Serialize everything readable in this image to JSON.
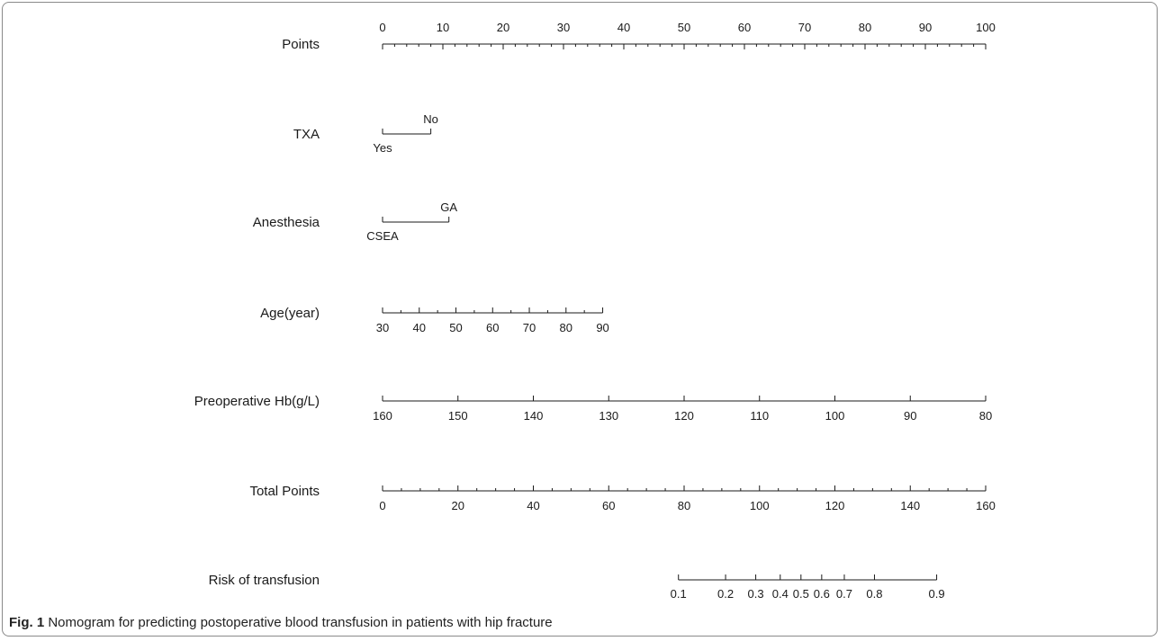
{
  "chart_data": {
    "type": "nomogram",
    "title": "",
    "scales": [
      {
        "label": "Points",
        "kind": "continuous",
        "points_range": [
          0,
          100
        ],
        "ticks": [
          0,
          10,
          20,
          30,
          40,
          50,
          60,
          70,
          80,
          90,
          100
        ],
        "label_position": "above"
      },
      {
        "label": "TXA",
        "kind": "categorical",
        "levels": [
          {
            "name": "Yes",
            "points": 0
          },
          {
            "name": "No",
            "points": 8
          }
        ]
      },
      {
        "label": "Anesthesia",
        "kind": "categorical",
        "levels": [
          {
            "name": "CSEA",
            "points": 0
          },
          {
            "name": "GA",
            "points": 11
          }
        ]
      },
      {
        "label": "Age(year)",
        "kind": "continuous",
        "value_range": [
          30,
          90
        ],
        "points_range": [
          0,
          36.5
        ],
        "ticks": [
          30,
          40,
          50,
          60,
          70,
          80,
          90
        ],
        "label_position": "below"
      },
      {
        "label": "Preoperative Hb(g/L)",
        "kind": "continuous",
        "value_range": [
          160,
          80
        ],
        "points_range": [
          0,
          100
        ],
        "ticks": [
          160,
          150,
          140,
          130,
          120,
          110,
          100,
          90,
          80
        ],
        "label_position": "below"
      },
      {
        "label": "Total Points",
        "kind": "continuous",
        "value_range": [
          0,
          160
        ],
        "ticks": [
          0,
          20,
          40,
          60,
          80,
          100,
          120,
          140,
          160
        ],
        "label_position": "below"
      },
      {
        "label": "Risk of transfusion",
        "kind": "probability",
        "ticks": [
          0.1,
          0.2,
          0.3,
          0.4,
          0.5,
          0.6,
          0.7,
          0.8,
          0.9
        ],
        "tick_labels": [
          "0.1",
          "0.2",
          "0.3",
          "0.4",
          "0.5",
          "0.6",
          "0.7",
          "0.8",
          "0.9"
        ],
        "total_points_at_ticks": [
          78.5,
          91,
          99,
          105.5,
          111,
          116.5,
          122.5,
          130.5,
          147
        ],
        "label_position": "below"
      }
    ]
  },
  "caption": {
    "prefix": "Fig. 1",
    "text": " Nomogram for predicting postoperative blood transfusion in patients with hip fracture"
  }
}
